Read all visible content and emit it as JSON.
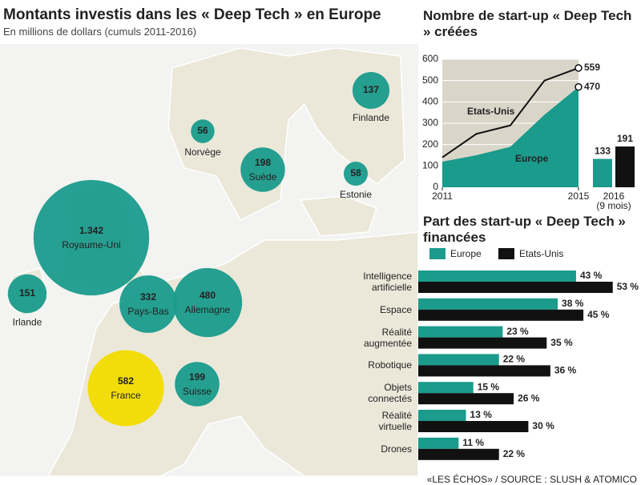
{
  "chart_data": [
    {
      "type": "bubble",
      "title": "Montants investis dans les « Deep Tech » en Europe",
      "subtitle": "En millions de dollars (cumuls 2011-2016)",
      "categories": [
        "Royaume-Uni",
        "Irlande",
        "Pays-Bas",
        "Allemagne",
        "France",
        "Suisse",
        "Suède",
        "Norvège",
        "Finlande",
        "Estonie"
      ],
      "values": [
        1342,
        151,
        332,
        480,
        582,
        199,
        198,
        56,
        137,
        58
      ],
      "value_labels": [
        "1.342",
        "151",
        "332",
        "480",
        "582",
        "199",
        "198",
        "56",
        "137",
        "58"
      ],
      "colors": [
        "#1a9b8c",
        "#1a9b8c",
        "#1a9b8c",
        "#1a9b8c",
        "#f2dc00",
        "#1a9b8c",
        "#1a9b8c",
        "#1a9b8c",
        "#1a9b8c",
        "#1a9b8c"
      ]
    },
    {
      "type": "area",
      "title": "Nombre de start-up  « Deep Tech » créées",
      "x": [
        2011,
        2012,
        2013,
        2014,
        2015
      ],
      "xlim": [
        2011,
        2015
      ],
      "xticks": [
        2011,
        2015
      ],
      "ylim": [
        0,
        600
      ],
      "yticks": [
        0,
        100,
        200,
        300,
        400,
        500,
        600
      ],
      "grid": true,
      "background_color": "#d9d6c9",
      "series": [
        {
          "name": "Etats-Unis",
          "color": "#111111",
          "values": [
            140,
            250,
            290,
            500,
            559
          ]
        },
        {
          "name": "Europe",
          "color": "#1a9b8c",
          "values": [
            120,
            150,
            190,
            340,
            470
          ]
        }
      ],
      "extra_bars": {
        "label": "2016",
        "note": "(9 mois)",
        "values": [
          133,
          191
        ],
        "colors": [
          "#1a9b8c",
          "#111111"
        ]
      }
    },
    {
      "type": "hbar",
      "title": "Part des start-up  « Deep Tech » financées",
      "categories": [
        "Intelligence\nartificielle",
        "Espace",
        "Réalité\naugmentée",
        "Robotique",
        "Objets\nconnectés",
        "Réalité\nvirtuelle",
        "Drones"
      ],
      "legend": "top-left",
      "series": [
        {
          "name": "Europe",
          "color": "#1a9b8c",
          "values": [
            43,
            38,
            23,
            22,
            15,
            13,
            11
          ],
          "value_labels": [
            "43 %",
            "38 %",
            "23 %",
            "22 %",
            "15 %",
            "13 %",
            "11 %"
          ]
        },
        {
          "name": "Etats-Unis",
          "color": "#111111",
          "values": [
            53,
            45,
            35,
            36,
            26,
            30,
            22
          ],
          "value_labels": [
            "53 %",
            "45 %",
            "35 %",
            "36 %",
            "26 %",
            "30 %",
            "22 %"
          ]
        }
      ]
    }
  ],
  "source": "«LES ÉCHOS» / SOURCE : SLUSH & ATOMICO"
}
